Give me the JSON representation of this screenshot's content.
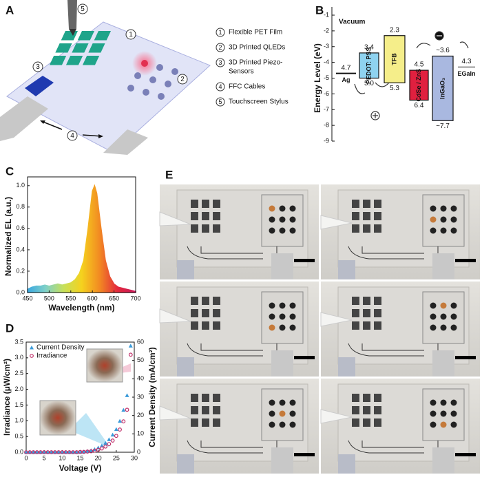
{
  "panel_labels": [
    "A",
    "B",
    "C",
    "D",
    "E"
  ],
  "panel_a": {
    "markers": [
      "1",
      "2",
      "3",
      "4",
      "5"
    ],
    "legend": [
      {
        "number": "1",
        "lines": [
          "Flexible PET Film"
        ]
      },
      {
        "number": "2",
        "lines": [
          "3D Printed QLEDs"
        ]
      },
      {
        "number": "3",
        "lines": [
          "3D Printed Piezo-",
          "Sensors"
        ]
      },
      {
        "number": "4",
        "lines": [
          "FFC Cables"
        ]
      },
      {
        "number": "5",
        "lines": [
          "Touchscreen Stylus"
        ]
      }
    ]
  },
  "chart_data": [
    {
      "type": "energy_levels",
      "ylabel": "Energy Level (eV)",
      "top_label": "Vacuum",
      "ylim": [
        -9,
        -1
      ],
      "yticks": [
        -1,
        -2,
        -3,
        -4,
        -5,
        -6,
        -7,
        -8,
        -9
      ],
      "layers": [
        {
          "name": "Ag",
          "kind": "line",
          "level": -4.7,
          "level_label": "4.7",
          "color": "#111111"
        },
        {
          "name": "PEDOT: PSS",
          "kind": "box",
          "top": -3.4,
          "bottom": -5.0,
          "top_label": "3.4",
          "bottom_label": "5.0",
          "color": "#8fd3f0"
        },
        {
          "name": "TFB",
          "kind": "box",
          "top": -2.3,
          "bottom": -5.3,
          "top_label": "2.3",
          "bottom_label": "5.3",
          "color": "#f5ee8a"
        },
        {
          "name": "CdSe / ZnS",
          "kind": "box",
          "top": -4.5,
          "bottom": -6.4,
          "top_label": "4.5",
          "bottom_label": "6.4",
          "color": "#e0203f"
        },
        {
          "name": "InGaO₃",
          "kind": "box",
          "top": -3.6,
          "bottom": -7.7,
          "top_label": "~3.6",
          "bottom_label": "~7.7",
          "color": "#a9b8e0"
        },
        {
          "name": "EGaIn",
          "kind": "line",
          "level": -4.3,
          "level_label": "4.3",
          "color": "#999999"
        }
      ]
    },
    {
      "type": "area",
      "xlabel": "Wavelength (nm)",
      "ylabel": "Normalized EL (a.u.)",
      "x": [
        450,
        460,
        470,
        480,
        490,
        500,
        510,
        520,
        530,
        540,
        550,
        560,
        570,
        580,
        590,
        600,
        605,
        610,
        620,
        630,
        640,
        650,
        660,
        670,
        680,
        690,
        700
      ],
      "values": [
        0.03,
        0.05,
        0.06,
        0.06,
        0.07,
        0.06,
        0.07,
        0.08,
        0.07,
        0.08,
        0.09,
        0.12,
        0.18,
        0.3,
        0.6,
        0.95,
        1.0,
        0.93,
        0.6,
        0.3,
        0.15,
        0.08,
        0.05,
        0.04,
        0.03,
        0.02,
        0.01
      ],
      "xlim": [
        450,
        700
      ],
      "xticks": [
        450,
        500,
        550,
        600,
        650,
        700
      ],
      "ylim": [
        0,
        1.05
      ],
      "yticks": [
        {
          "value": 0,
          "label": "0.0"
        },
        {
          "value": 0.2,
          "label": "0.2"
        },
        {
          "value": 0.4,
          "label": "0.4"
        },
        {
          "value": 0.6,
          "label": "0.6"
        },
        {
          "value": 0.8,
          "label": "0.8"
        },
        {
          "value": 1,
          "label": "1.0"
        }
      ],
      "fill_gradient": [
        "#3aa8e0",
        "#7fd0c8",
        "#c6e05a",
        "#f5d21e",
        "#f28a22",
        "#e3283c",
        "#c8185a"
      ]
    },
    {
      "type": "scatter",
      "xlabel": "Voltage (V)",
      "ylabel": "Irradiance (μW/cm²)",
      "y2label": "Current Density (mA/cm²)",
      "legend": "upper left",
      "x": [
        0,
        1,
        2,
        3,
        4,
        5,
        6,
        7,
        8,
        9,
        10,
        11,
        12,
        13,
        14,
        15,
        16,
        17,
        18,
        19,
        20,
        21,
        22,
        23,
        24,
        25,
        26,
        27,
        28,
        29
      ],
      "series": [
        {
          "name": "Current Density",
          "color": "#3a9ad9",
          "marker": "triangle",
          "axis": "y2",
          "values": [
            0,
            0,
            0,
            0,
            0,
            0,
            0,
            0,
            0,
            0,
            0,
            0,
            0,
            0,
            0,
            0.1,
            0.3,
            0.6,
            1.0,
            1.6,
            2.5,
            3.6,
            5,
            7,
            9.5,
            12.5,
            17,
            23,
            31,
            58
          ]
        },
        {
          "name": "Irradiance",
          "color": "#c0306a",
          "marker": "circle",
          "values": [
            0,
            0,
            0,
            0,
            0,
            0,
            0,
            0,
            0,
            0,
            0,
            0,
            0,
            0,
            0,
            0.01,
            0.01,
            0.02,
            0.03,
            0.05,
            0.08,
            0.12,
            0.18,
            0.26,
            0.37,
            0.52,
            0.72,
            0.98,
            1.35,
            3.1
          ]
        }
      ],
      "xlim": [
        0,
        30
      ],
      "xticks": [
        0,
        5,
        10,
        15,
        20,
        25,
        30
      ],
      "ylim": [
        0,
        3.5
      ],
      "yticks": [
        {
          "value": 0,
          "label": "0.0"
        },
        {
          "value": 0.5,
          "label": "0.5"
        },
        {
          "value": 1,
          "label": "1.0"
        },
        {
          "value": 1.5,
          "label": "1.5"
        },
        {
          "value": 2,
          "label": "2.0"
        },
        {
          "value": 2.5,
          "label": "2.5"
        },
        {
          "value": 3,
          "label": "3.0"
        },
        {
          "value": 3.5,
          "label": "3.5"
        }
      ],
      "y2lim": [
        0,
        60
      ],
      "y2ticks": [
        0,
        10,
        20,
        30,
        40,
        50,
        60
      ]
    }
  ]
}
